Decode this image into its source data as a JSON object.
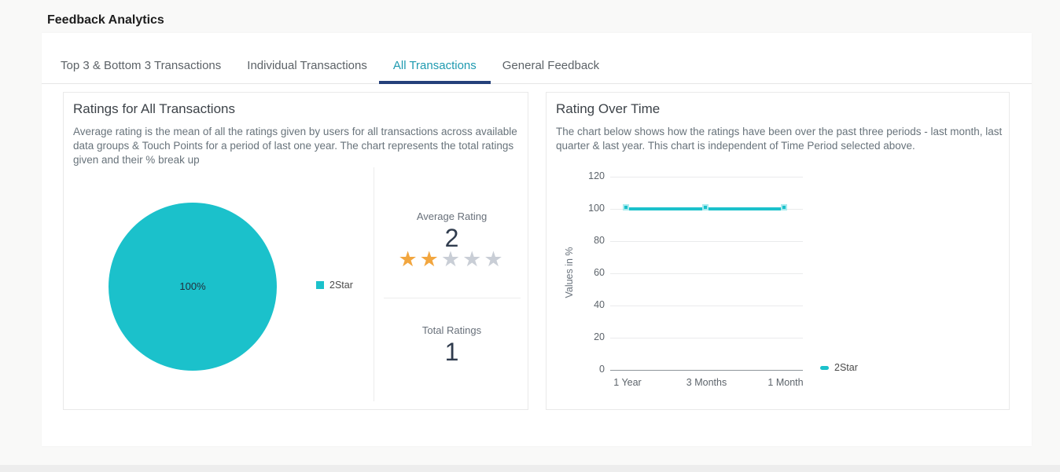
{
  "page": {
    "title": "Feedback Analytics",
    "background_color": "#f9f9f8",
    "footer_strip_color": "#ededed"
  },
  "tabs": {
    "items": [
      {
        "label": "Top 3 & Bottom 3 Transactions",
        "active": false
      },
      {
        "label": "Individual Transactions",
        "active": false
      },
      {
        "label": "All Transactions",
        "active": true
      },
      {
        "label": "General Feedback",
        "active": false
      }
    ],
    "active_text_color": "#1f9ab0",
    "active_underline_color": "#24407a"
  },
  "ratings_panel": {
    "title": "Ratings for All Transactions",
    "description": "Average rating is the mean of all the ratings given by users for all transactions across available data groups & Touch Points for a period of last one year. The chart represents the total ratings given and their % break up",
    "average_rating_label": "Average Rating",
    "average_rating_value": "2",
    "total_ratings_label": "Total Ratings",
    "total_ratings_value": "1",
    "stars": {
      "max": 5,
      "filled": 2,
      "filled_color": "#f2a63f",
      "empty_color": "#c9ced6"
    }
  },
  "rating_over_time_panel": {
    "title": "Rating Over Time",
    "description": "The chart below shows how the ratings have been over the past three periods - last month, last quarter & last year. This chart is independent of Time Period selected above."
  },
  "chart_data": [
    {
      "type": "pie",
      "title": "Ratings for All Transactions",
      "slices": [
        {
          "label": "2Star",
          "value": 100,
          "display": "100%",
          "color": "#1bc1cb"
        }
      ],
      "legend_position": "right"
    },
    {
      "type": "line",
      "title": "Rating Over Time",
      "categories": [
        "1 Year",
        "3 Months",
        "1 Month"
      ],
      "series": [
        {
          "name": "2Star",
          "values": [
            100,
            100,
            100
          ],
          "color": "#1bc1cb"
        }
      ],
      "ylabel": "Values in %",
      "ylim": [
        0,
        120
      ],
      "yticks": [
        0,
        20,
        40,
        60,
        80,
        100,
        120
      ],
      "grid": true,
      "legend_position": "right"
    }
  ]
}
